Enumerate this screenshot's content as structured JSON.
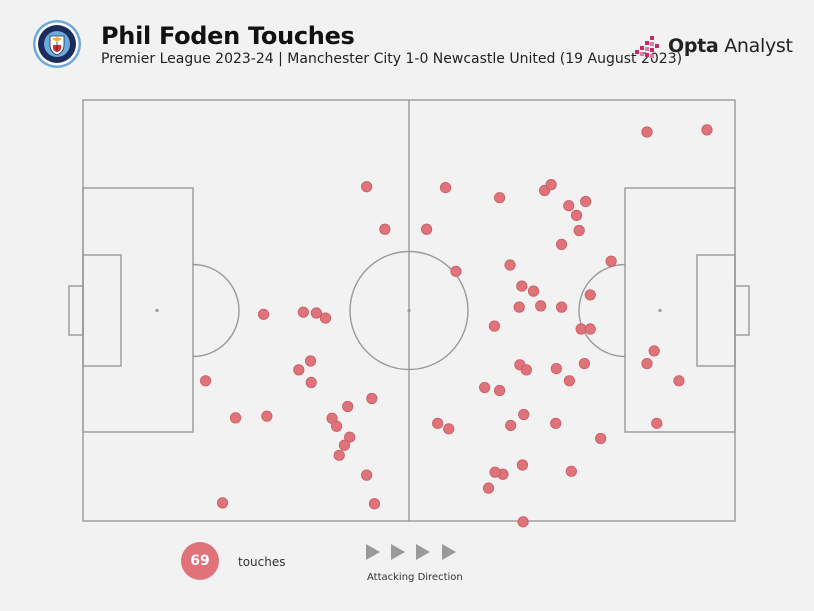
{
  "header": {
    "title": "Phil Foden Touches",
    "subtitle": "Premier League 2023-24 | Manchester City 1-0 Newcastle United (19 August 2023)",
    "brand_bold": "Opta",
    "brand_light": " Analyst",
    "badge_text_top": "MANCHESTER",
    "badge_text_bottom": "CITY"
  },
  "legend": {
    "count": "69",
    "count_label": "touches",
    "direction_label": "Attacking Direction",
    "direction_icon": "play-arrow-icon"
  },
  "colors": {
    "background": "#f3f2f2",
    "pitch_lines": "#9a9a9a",
    "touch_fill": "#e0737a",
    "touch_stroke": "#c65d64",
    "badge_blue": "#6cabdd",
    "brand_accent": "#c8296b"
  },
  "chart_data": {
    "type": "scatter",
    "title": "Phil Foden Touches",
    "xlabel": "",
    "ylabel": "",
    "xlim": [
      0,
      100
    ],
    "ylim": [
      0,
      100
    ],
    "grid": false,
    "points": [
      {
        "x": 86.5,
        "y": 92.4
      },
      {
        "x": 95.7,
        "y": 92.9
      },
      {
        "x": 43.5,
        "y": 79.4
      },
      {
        "x": 55.6,
        "y": 79.2
      },
      {
        "x": 63.9,
        "y": 76.8
      },
      {
        "x": 70.8,
        "y": 78.5
      },
      {
        "x": 71.8,
        "y": 79.9
      },
      {
        "x": 74.5,
        "y": 74.9
      },
      {
        "x": 77.1,
        "y": 75.9
      },
      {
        "x": 75.7,
        "y": 72.6
      },
      {
        "x": 46.3,
        "y": 69.3
      },
      {
        "x": 52.7,
        "y": 69.3
      },
      {
        "x": 76.1,
        "y": 69.0
      },
      {
        "x": 73.4,
        "y": 65.7
      },
      {
        "x": 81.0,
        "y": 61.7
      },
      {
        "x": 57.2,
        "y": 59.3
      },
      {
        "x": 65.5,
        "y": 60.8
      },
      {
        "x": 67.3,
        "y": 55.8
      },
      {
        "x": 69.1,
        "y": 54.6
      },
      {
        "x": 77.8,
        "y": 53.7
      },
      {
        "x": 66.9,
        "y": 50.8
      },
      {
        "x": 70.2,
        "y": 51.1
      },
      {
        "x": 73.4,
        "y": 50.8
      },
      {
        "x": 33.8,
        "y": 49.6
      },
      {
        "x": 35.8,
        "y": 49.4
      },
      {
        "x": 37.2,
        "y": 48.2
      },
      {
        "x": 27.7,
        "y": 49.1
      },
      {
        "x": 63.1,
        "y": 46.3
      },
      {
        "x": 76.4,
        "y": 45.6
      },
      {
        "x": 77.8,
        "y": 45.6
      },
      {
        "x": 87.6,
        "y": 40.4
      },
      {
        "x": 34.9,
        "y": 38.0
      },
      {
        "x": 33.1,
        "y": 35.9
      },
      {
        "x": 67.0,
        "y": 37.1
      },
      {
        "x": 68.0,
        "y": 35.9
      },
      {
        "x": 72.6,
        "y": 36.2
      },
      {
        "x": 76.9,
        "y": 37.4
      },
      {
        "x": 86.5,
        "y": 37.4
      },
      {
        "x": 74.6,
        "y": 33.3
      },
      {
        "x": 91.4,
        "y": 33.3
      },
      {
        "x": 18.8,
        "y": 33.3
      },
      {
        "x": 35.0,
        "y": 32.9
      },
      {
        "x": 61.6,
        "y": 31.7
      },
      {
        "x": 63.9,
        "y": 31.0
      },
      {
        "x": 44.3,
        "y": 29.1
      },
      {
        "x": 40.6,
        "y": 27.2
      },
      {
        "x": 67.6,
        "y": 25.3
      },
      {
        "x": 23.4,
        "y": 24.5
      },
      {
        "x": 28.2,
        "y": 24.9
      },
      {
        "x": 38.2,
        "y": 24.4
      },
      {
        "x": 38.9,
        "y": 22.5
      },
      {
        "x": 54.4,
        "y": 23.2
      },
      {
        "x": 56.1,
        "y": 21.9
      },
      {
        "x": 65.6,
        "y": 22.7
      },
      {
        "x": 72.5,
        "y": 23.2
      },
      {
        "x": 88.0,
        "y": 23.2
      },
      {
        "x": 79.4,
        "y": 19.6
      },
      {
        "x": 40.9,
        "y": 19.9
      },
      {
        "x": 40.1,
        "y": 18.0
      },
      {
        "x": 39.3,
        "y": 15.6
      },
      {
        "x": 67.4,
        "y": 13.3
      },
      {
        "x": 64.4,
        "y": 11.1
      },
      {
        "x": 63.2,
        "y": 11.6
      },
      {
        "x": 74.9,
        "y": 11.8
      },
      {
        "x": 43.5,
        "y": 10.9
      },
      {
        "x": 62.2,
        "y": 7.8
      },
      {
        "x": 21.4,
        "y": 4.3
      },
      {
        "x": 44.7,
        "y": 4.1
      },
      {
        "x": 67.5,
        "y": -0.2
      }
    ]
  }
}
